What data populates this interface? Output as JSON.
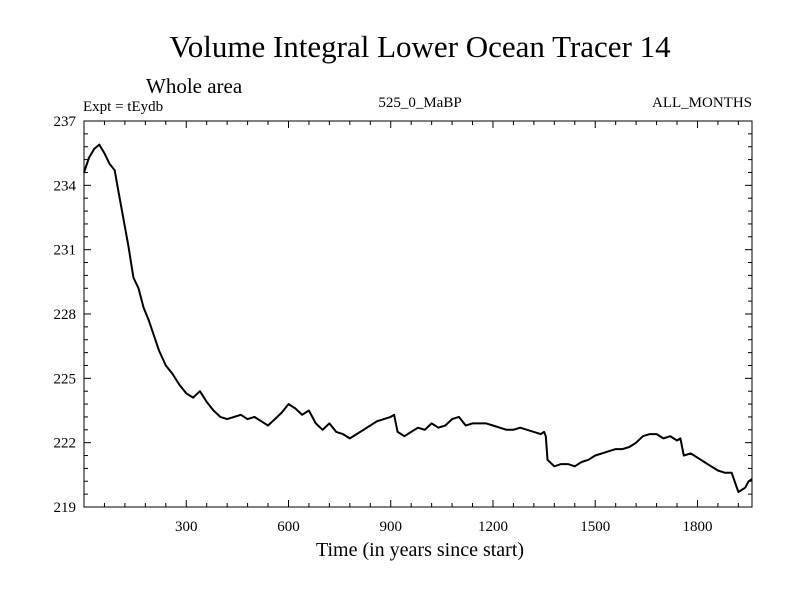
{
  "chart_data": {
    "type": "line",
    "title": "Volume Integral Lower Ocean Tracer 14",
    "subtitle": "Whole area",
    "expt_label": "Expt = tEydb",
    "center_label": "525_0_MaBP",
    "right_label": "ALL_MONTHS",
    "xlabel": "Time (in years since start)",
    "ylabel": "",
    "xlim": [
      0,
      1960
    ],
    "ylim": [
      219,
      237
    ],
    "x_ticks": [
      300,
      600,
      900,
      1200,
      1500,
      1800
    ],
    "x_tick_labels": [
      "300",
      "600",
      "900",
      "1200",
      "1500",
      "1800"
    ],
    "y_ticks": [
      219,
      222,
      225,
      228,
      231,
      234,
      237
    ],
    "y_tick_labels": [
      "219",
      "222",
      "225",
      "228",
      "231",
      "234",
      "237"
    ],
    "series": [
      {
        "name": "tEydb",
        "color": "#000000",
        "x": [
          0,
          15,
          30,
          45,
          60,
          75,
          90,
          100,
          115,
          130,
          145,
          160,
          175,
          190,
          205,
          220,
          240,
          260,
          280,
          300,
          320,
          340,
          360,
          380,
          400,
          420,
          440,
          460,
          480,
          500,
          520,
          540,
          560,
          580,
          600,
          620,
          640,
          660,
          680,
          700,
          720,
          740,
          760,
          780,
          800,
          820,
          840,
          860,
          880,
          900,
          910,
          920,
          940,
          960,
          980,
          1000,
          1020,
          1040,
          1060,
          1080,
          1100,
          1120,
          1140,
          1160,
          1180,
          1200,
          1220,
          1240,
          1260,
          1280,
          1300,
          1320,
          1340,
          1350,
          1355,
          1360,
          1380,
          1400,
          1420,
          1440,
          1460,
          1480,
          1500,
          1520,
          1540,
          1560,
          1580,
          1600,
          1620,
          1640,
          1660,
          1680,
          1700,
          1720,
          1740,
          1750,
          1760,
          1780,
          1800,
          1820,
          1840,
          1860,
          1880,
          1900,
          1920,
          1930,
          1940,
          1950,
          1960
        ],
        "y": [
          234.6,
          235.3,
          235.7,
          235.9,
          235.5,
          235.0,
          234.7,
          233.8,
          232.5,
          231.2,
          229.7,
          229.2,
          228.3,
          227.7,
          227.0,
          226.3,
          225.6,
          225.2,
          224.7,
          224.3,
          224.1,
          224.4,
          223.9,
          223.5,
          223.2,
          223.1,
          223.2,
          223.3,
          223.1,
          223.2,
          223.0,
          222.8,
          223.1,
          223.4,
          223.8,
          223.6,
          223.3,
          223.5,
          222.9,
          222.6,
          222.9,
          222.5,
          222.4,
          222.2,
          222.4,
          222.6,
          222.8,
          223.0,
          223.1,
          223.2,
          223.3,
          222.5,
          222.3,
          222.5,
          222.7,
          222.6,
          222.9,
          222.7,
          222.8,
          223.1,
          223.2,
          222.8,
          222.9,
          222.9,
          222.9,
          222.8,
          222.7,
          222.6,
          222.6,
          222.7,
          222.6,
          222.5,
          222.4,
          222.5,
          222.3,
          221.2,
          220.9,
          221.0,
          221.0,
          220.9,
          221.1,
          221.2,
          221.4,
          221.5,
          221.6,
          221.7,
          221.7,
          221.8,
          222.0,
          222.3,
          222.4,
          222.4,
          222.2,
          222.3,
          222.1,
          222.2,
          221.4,
          221.5,
          221.3,
          221.1,
          220.9,
          220.7,
          220.6,
          220.6,
          219.7,
          219.8,
          219.9,
          220.2,
          220.3
        ]
      }
    ]
  }
}
